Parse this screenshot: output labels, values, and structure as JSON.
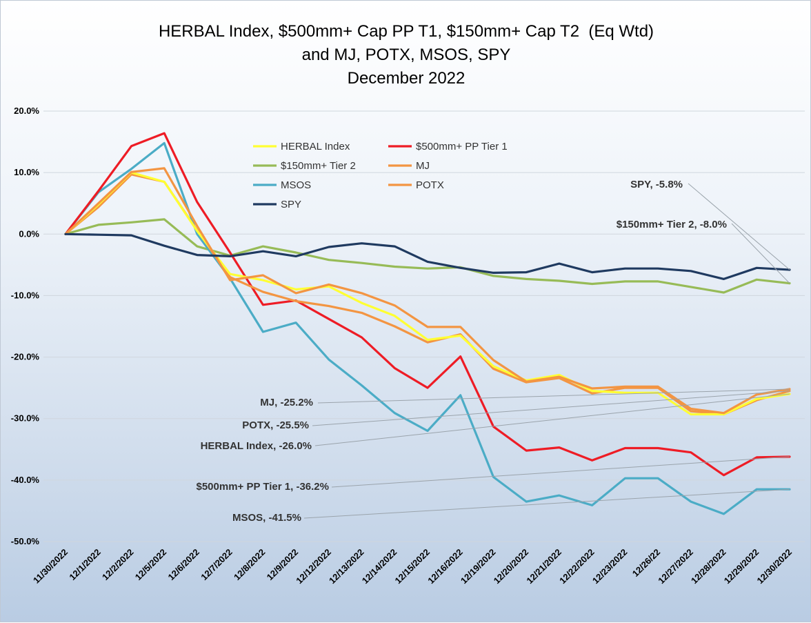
{
  "chart_data": {
    "type": "line",
    "title": [
      "HERBAL Index, $500mm+ Cap PP T1, $150mm+ Cap T2  (Eq Wtd)",
      "and MJ, POTX, MSOS, SPY",
      "December 2022"
    ],
    "xlabel": "",
    "ylabel": "",
    "ylim": [
      -50,
      20
    ],
    "yticks": [
      20,
      10,
      0,
      -10,
      -20,
      -30,
      -40,
      -50
    ],
    "ytick_labels": [
      "20.0%",
      "10.0%",
      "0.0%",
      "-10.0%",
      "-20.0%",
      "-30.0%",
      "-40.0%",
      "-50.0%"
    ],
    "grid": "horizontal",
    "legend_position": "top-center",
    "categories": [
      "11/30/2022",
      "12/1/2022",
      "12/2/2022",
      "12/5/2022",
      "12/6/2022",
      "12/7/2022",
      "12/8/2022",
      "12/9/2022",
      "12/12/2022",
      "12/13/2022",
      "12/14/2022",
      "12/15/2022",
      "12/16/2022",
      "12/19/2022",
      "12/20/2022",
      "12/21/2022",
      "12/22/2022",
      "12/23/2022",
      "12/26/22",
      "12/27/2022",
      "12/28/2022",
      "12/29/2022",
      "12/30/2022"
    ],
    "series": [
      {
        "name": "HERBAL Index",
        "color": "#ffff33",
        "values": [
          0,
          4.8,
          10.0,
          8.5,
          0.5,
          -6.5,
          -7.5,
          -9.0,
          -8.5,
          -11.2,
          -13.3,
          -17.2,
          -16.5,
          -21.5,
          -23.8,
          -22.9,
          -25.5,
          -25.8,
          -25.8,
          -29.3,
          -29.3,
          -26.8,
          -26.0
        ]
      },
      {
        "name": "$500mm+ PP Tier 1",
        "color": "#ee1c25",
        "values": [
          0,
          7.0,
          14.3,
          16.4,
          5.2,
          -3.0,
          -11.5,
          -10.8,
          -13.8,
          -16.8,
          -21.8,
          -25.0,
          -19.9,
          -31.3,
          -35.2,
          -34.7,
          -36.8,
          -34.8,
          -34.8,
          -35.5,
          -39.2,
          -36.3,
          -36.2
        ]
      },
      {
        "name": "$150mm+ Tier 2",
        "color": "#97bb57",
        "values": [
          0,
          1.5,
          1.9,
          2.4,
          -2.0,
          -3.5,
          -2.0,
          -3.0,
          -4.2,
          -4.7,
          -5.3,
          -5.6,
          -5.4,
          -6.8,
          -7.3,
          -7.6,
          -8.1,
          -7.7,
          -7.7,
          -8.6,
          -9.5,
          -7.4,
          -8.0
        ]
      },
      {
        "name": "MJ",
        "color": "#f39542",
        "values": [
          0,
          5.0,
          10.1,
          10.7,
          1.3,
          -7.5,
          -6.7,
          -9.6,
          -8.2,
          -9.6,
          -11.6,
          -15.1,
          -15.1,
          -20.5,
          -24.0,
          -23.2,
          -25.1,
          -24.8,
          -24.8,
          -28.4,
          -29.1,
          -26.1,
          -25.2
        ]
      },
      {
        "name": "MSOS",
        "color": "#4bacc6",
        "values": [
          0,
          6.8,
          10.6,
          14.8,
          0.0,
          -7.2,
          -15.9,
          -14.4,
          -20.4,
          -24.6,
          -29.1,
          -32.0,
          -26.2,
          -39.5,
          -43.5,
          -42.5,
          -44.1,
          -39.7,
          -39.7,
          -43.5,
          -45.5,
          -41.5,
          -41.5
        ]
      },
      {
        "name": "POTX",
        "color": "#f39542",
        "values": [
          0,
          4.4,
          9.7,
          8.5,
          0.6,
          -7.0,
          -9.4,
          -10.9,
          -11.7,
          -12.8,
          -15.0,
          -17.6,
          -16.3,
          -21.9,
          -24.1,
          -23.4,
          -25.9,
          -25.0,
          -25.0,
          -28.8,
          -29.3,
          -27.0,
          -25.5
        ]
      },
      {
        "name": "SPY",
        "color": "#1f3a60",
        "values": [
          0,
          -0.1,
          -0.2,
          -1.9,
          -3.4,
          -3.6,
          -2.8,
          -3.6,
          -2.1,
          -1.5,
          -2.0,
          -4.5,
          -5.5,
          -6.3,
          -6.2,
          -4.8,
          -6.2,
          -5.6,
          -5.6,
          -6.0,
          -7.3,
          -5.5,
          -5.8
        ]
      }
    ],
    "annotations": [
      {
        "text": "SPY, -5.8%",
        "series": "SPY"
      },
      {
        "text": "$150mm+ Tier 2, -8.0%",
        "series": "$150mm+ Tier 2"
      },
      {
        "text": "MJ, -25.2%",
        "series": "MJ"
      },
      {
        "text": "POTX, -25.5%",
        "series": "POTX"
      },
      {
        "text": "HERBAL Index, -26.0%",
        "series": "HERBAL Index"
      },
      {
        "text": "$500mm+ PP Tier 1, -36.2%",
        "series": "$500mm+ PP Tier 1"
      },
      {
        "text": "MSOS, -41.5%",
        "series": "MSOS"
      }
    ]
  }
}
